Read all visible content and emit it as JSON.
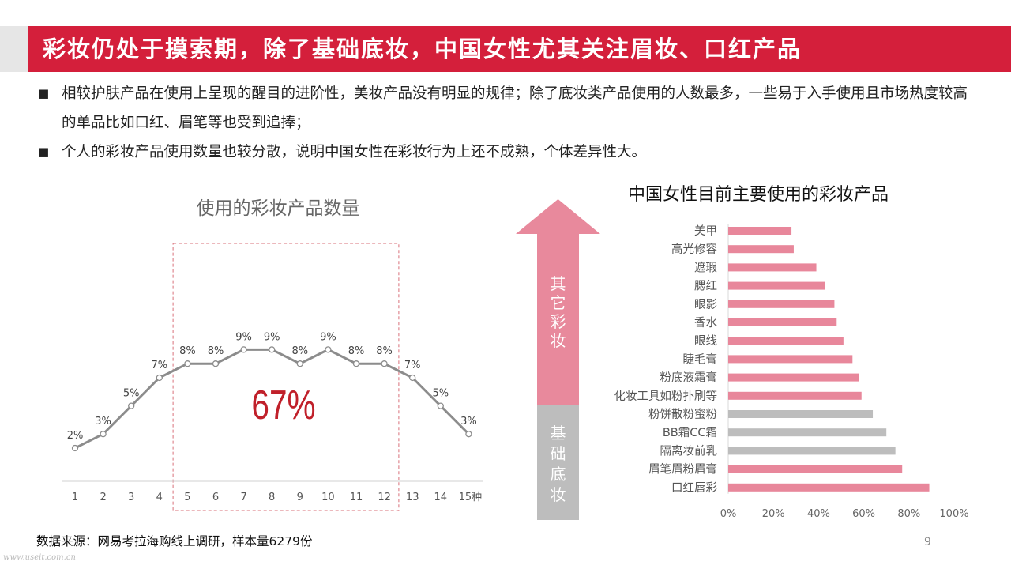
{
  "header": {
    "title": "彩妆仍处于摸索期，除了基础底妆，中国女性尤其关注眉妆、口红产品"
  },
  "bullets": [
    {
      "mark": "■",
      "text": "相较护肤产品在使用上呈现的醒目的进阶性，美妆产品没有明显的规律；除了底妆类产品使用的人数最多，一些易于入手使用且市场热度较高的单品比如口红、眉笔等也受到追捧；"
    },
    {
      "mark": "■",
      "text": "个人的彩妆产品使用数量也较分散，说明中国女性在彩妆行为上还不成熟，个体差异性大。"
    }
  ],
  "left_chart_title": "使用的彩妆产品数量",
  "right_chart_title": "中国女性目前主要使用的彩妆产品",
  "chart_data": [
    {
      "type": "line",
      "title": "使用的彩妆产品数量",
      "x": [
        "1",
        "2",
        "3",
        "4",
        "5",
        "6",
        "7",
        "8",
        "9",
        "10",
        "11",
        "12",
        "13",
        "14",
        "15种"
      ],
      "series": [
        {
          "values": [
            2,
            3,
            5,
            7,
            8,
            8,
            9,
            9,
            8,
            9,
            8,
            8,
            7,
            5,
            3
          ],
          "labels": [
            "2%",
            "3%",
            "5%",
            "7%",
            "8%",
            "8%",
            "9%",
            "9%",
            "8%",
            "9%",
            "8%",
            "8%",
            "7%",
            "5%",
            "3%"
          ]
        }
      ],
      "annotation": {
        "text": "67%",
        "from_x": "5",
        "to_x": "12"
      },
      "colors": {
        "line": "#8c8c8c",
        "annotation": "#c0202a",
        "box": "#d9707a"
      }
    },
    {
      "type": "bar",
      "orientation": "horizontal",
      "title": "中国女性目前主要使用的彩妆产品",
      "categories": [
        "美甲",
        "高光修容",
        "遮瑕",
        "腮红",
        "眼影",
        "香水",
        "眼线",
        "睫毛膏",
        "粉底液霜膏",
        "化妆工具如粉扑刷等",
        "粉饼散粉蜜粉",
        "BB霜CC霜",
        "隔离妆前乳",
        "眉笔眉粉眉膏",
        "口红唇彩"
      ],
      "values": [
        28,
        29,
        39,
        43,
        47,
        48,
        51,
        55,
        58,
        59,
        64,
        70,
        74,
        77,
        89
      ],
      "bar_colors": [
        "#e8879b",
        "#e8879b",
        "#e8879b",
        "#e8879b",
        "#e8879b",
        "#e8879b",
        "#e8879b",
        "#e8879b",
        "#e8879b",
        "#e8879b",
        "#bdbdbd",
        "#bdbdbd",
        "#bdbdbd",
        "#e8879b",
        "#e8879b"
      ],
      "xlim": [
        0,
        100
      ],
      "xticks": [
        "0%",
        "20%",
        "40%",
        "60%",
        "80%",
        "100%"
      ],
      "arrow": {
        "top_label": "其它彩妆",
        "bottom_label": "基础底妆",
        "top_color": "#e8899c",
        "bottom_color": "#bdbdbd"
      }
    }
  ],
  "footer": {
    "source": "数据来源：网易考拉海购线上调研，样本量6279份",
    "page": "9",
    "watermark": "www.useit.com.cn"
  }
}
